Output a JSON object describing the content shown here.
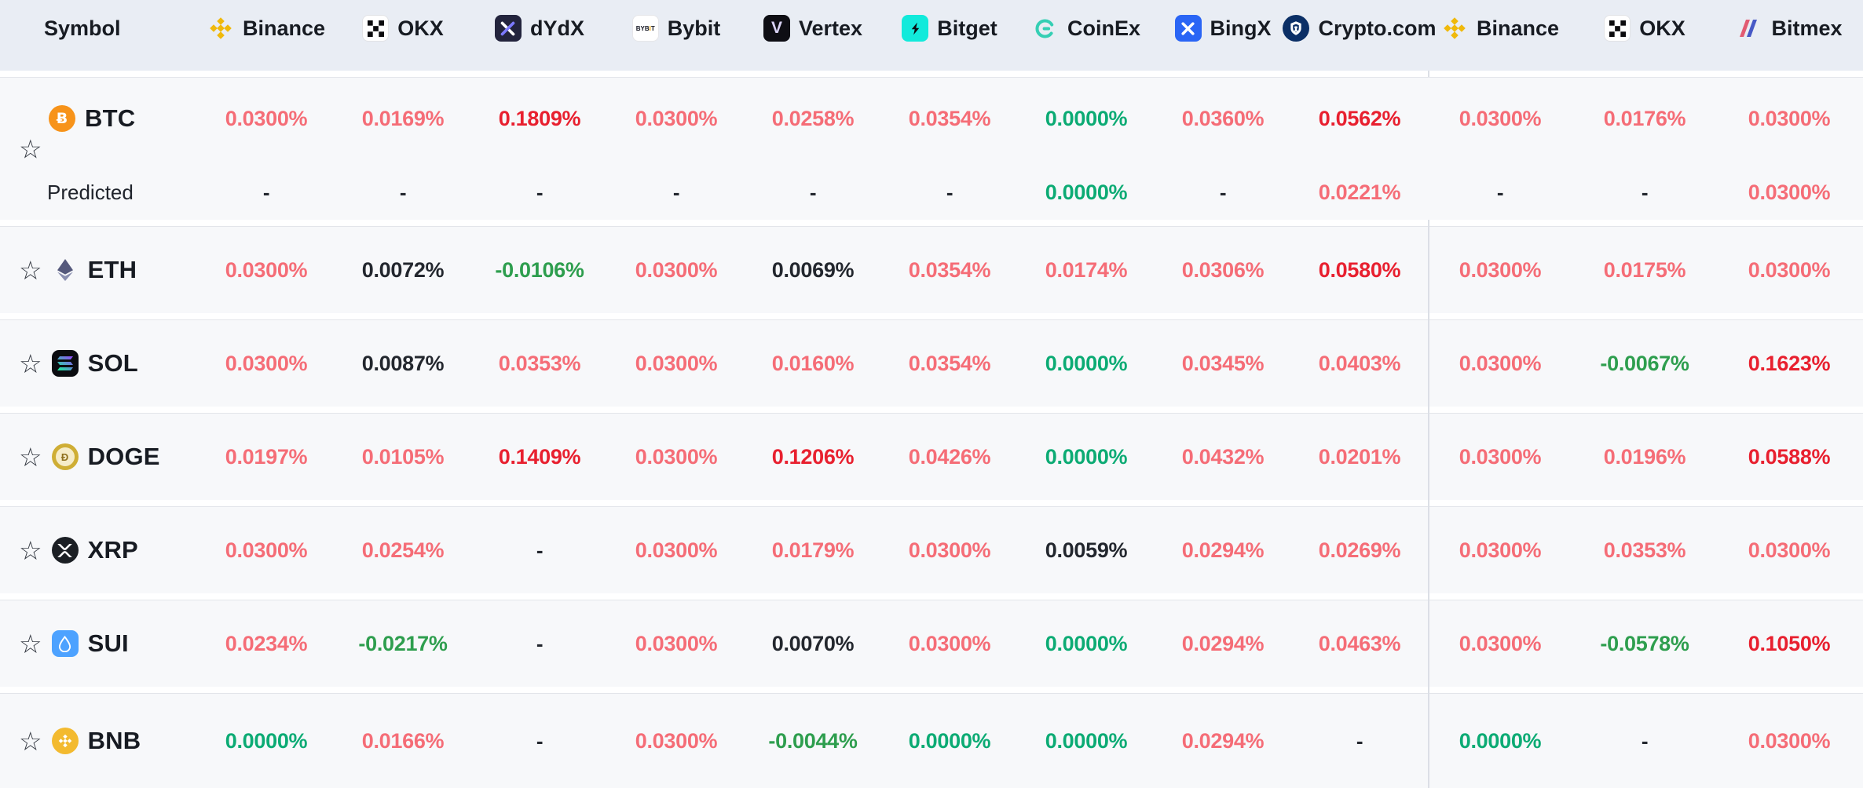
{
  "table": {
    "symbol_header": "Symbol",
    "exchanges": [
      {
        "name": "Binance",
        "icon": "binance-icon"
      },
      {
        "name": "OKX",
        "icon": "okx-icon"
      },
      {
        "name": "dYdX",
        "icon": "dydx-icon"
      },
      {
        "name": "Bybit",
        "icon": "bybit-icon"
      },
      {
        "name": "Vertex",
        "icon": "vertex-icon"
      },
      {
        "name": "Bitget",
        "icon": "bitget-icon"
      },
      {
        "name": "CoinEx",
        "icon": "coinex-icon"
      },
      {
        "name": "BingX",
        "icon": "bingx-icon"
      },
      {
        "name": "Crypto.com",
        "icon": "cryptocom-icon"
      },
      {
        "name": "Binance",
        "icon": "binance-icon"
      },
      {
        "name": "OKX",
        "icon": "okx-icon"
      },
      {
        "name": "Bitmex",
        "icon": "bitmex-icon"
      }
    ],
    "btc_block": {
      "symbol": "BTC",
      "icon": "btc-icon",
      "values": [
        {
          "v": "0.0300%",
          "tone": "red"
        },
        {
          "v": "0.0169%",
          "tone": "red"
        },
        {
          "v": "0.1809%",
          "tone": "red2"
        },
        {
          "v": "0.0300%",
          "tone": "red"
        },
        {
          "v": "0.0258%",
          "tone": "red"
        },
        {
          "v": "0.0354%",
          "tone": "red"
        },
        {
          "v": "0.0000%",
          "tone": "green"
        },
        {
          "v": "0.0360%",
          "tone": "red"
        },
        {
          "v": "0.0562%",
          "tone": "red2"
        },
        {
          "v": "0.0300%",
          "tone": "red"
        },
        {
          "v": "0.0176%",
          "tone": "red"
        },
        {
          "v": "0.0300%",
          "tone": "red"
        }
      ],
      "predicted": {
        "label": "Predicted",
        "values": [
          {
            "v": "-",
            "tone": "dash"
          },
          {
            "v": "-",
            "tone": "dash"
          },
          {
            "v": "-",
            "tone": "dash"
          },
          {
            "v": "-",
            "tone": "dash"
          },
          {
            "v": "-",
            "tone": "dash"
          },
          {
            "v": "-",
            "tone": "dash"
          },
          {
            "v": "0.0000%",
            "tone": "green"
          },
          {
            "v": "-",
            "tone": "dash"
          },
          {
            "v": "0.0221%",
            "tone": "red"
          },
          {
            "v": "-",
            "tone": "dash"
          },
          {
            "v": "-",
            "tone": "dash"
          },
          {
            "v": "0.0300%",
            "tone": "red"
          }
        ]
      }
    },
    "rows": [
      {
        "symbol": "ETH",
        "icon": "eth-icon",
        "values": [
          {
            "v": "0.0300%",
            "tone": "red"
          },
          {
            "v": "0.0072%",
            "tone": "dark"
          },
          {
            "v": "-0.0106%",
            "tone": "green2"
          },
          {
            "v": "0.0300%",
            "tone": "red"
          },
          {
            "v": "0.0069%",
            "tone": "dark"
          },
          {
            "v": "0.0354%",
            "tone": "red"
          },
          {
            "v": "0.0174%",
            "tone": "red"
          },
          {
            "v": "0.0306%",
            "tone": "red"
          },
          {
            "v": "0.0580%",
            "tone": "red2"
          },
          {
            "v": "0.0300%",
            "tone": "red"
          },
          {
            "v": "0.0175%",
            "tone": "red"
          },
          {
            "v": "0.0300%",
            "tone": "red"
          }
        ]
      },
      {
        "symbol": "SOL",
        "icon": "sol-icon",
        "values": [
          {
            "v": "0.0300%",
            "tone": "red"
          },
          {
            "v": "0.0087%",
            "tone": "dark"
          },
          {
            "v": "0.0353%",
            "tone": "red"
          },
          {
            "v": "0.0300%",
            "tone": "red"
          },
          {
            "v": "0.0160%",
            "tone": "red"
          },
          {
            "v": "0.0354%",
            "tone": "red"
          },
          {
            "v": "0.0000%",
            "tone": "green"
          },
          {
            "v": "0.0345%",
            "tone": "red"
          },
          {
            "v": "0.0403%",
            "tone": "red"
          },
          {
            "v": "0.0300%",
            "tone": "red"
          },
          {
            "v": "-0.0067%",
            "tone": "green2"
          },
          {
            "v": "0.1623%",
            "tone": "red2"
          }
        ]
      },
      {
        "symbol": "DOGE",
        "icon": "doge-icon",
        "values": [
          {
            "v": "0.0197%",
            "tone": "red"
          },
          {
            "v": "0.0105%",
            "tone": "red"
          },
          {
            "v": "0.1409%",
            "tone": "red2"
          },
          {
            "v": "0.0300%",
            "tone": "red"
          },
          {
            "v": "0.1206%",
            "tone": "red2"
          },
          {
            "v": "0.0426%",
            "tone": "red"
          },
          {
            "v": "0.0000%",
            "tone": "green"
          },
          {
            "v": "0.0432%",
            "tone": "red"
          },
          {
            "v": "0.0201%",
            "tone": "red"
          },
          {
            "v": "0.0300%",
            "tone": "red"
          },
          {
            "v": "0.0196%",
            "tone": "red"
          },
          {
            "v": "0.0588%",
            "tone": "red2"
          }
        ]
      },
      {
        "symbol": "XRP",
        "icon": "xrp-icon",
        "values": [
          {
            "v": "0.0300%",
            "tone": "red"
          },
          {
            "v": "0.0254%",
            "tone": "red"
          },
          {
            "v": "-",
            "tone": "dash"
          },
          {
            "v": "0.0300%",
            "tone": "red"
          },
          {
            "v": "0.0179%",
            "tone": "red"
          },
          {
            "v": "0.0300%",
            "tone": "red"
          },
          {
            "v": "0.0059%",
            "tone": "dark"
          },
          {
            "v": "0.0294%",
            "tone": "red"
          },
          {
            "v": "0.0269%",
            "tone": "red"
          },
          {
            "v": "0.0300%",
            "tone": "red"
          },
          {
            "v": "0.0353%",
            "tone": "red"
          },
          {
            "v": "0.0300%",
            "tone": "red"
          }
        ]
      },
      {
        "symbol": "SUI",
        "icon": "sui-icon",
        "values": [
          {
            "v": "0.0234%",
            "tone": "red"
          },
          {
            "v": "-0.0217%",
            "tone": "green2"
          },
          {
            "v": "-",
            "tone": "dash"
          },
          {
            "v": "0.0300%",
            "tone": "red"
          },
          {
            "v": "0.0070%",
            "tone": "dark"
          },
          {
            "v": "0.0300%",
            "tone": "red"
          },
          {
            "v": "0.0000%",
            "tone": "green"
          },
          {
            "v": "0.0294%",
            "tone": "red"
          },
          {
            "v": "0.0463%",
            "tone": "red"
          },
          {
            "v": "0.0300%",
            "tone": "red"
          },
          {
            "v": "-0.0578%",
            "tone": "green2"
          },
          {
            "v": "0.1050%",
            "tone": "red2"
          }
        ]
      },
      {
        "symbol": "BNB",
        "icon": "bnb-icon",
        "values": [
          {
            "v": "0.0000%",
            "tone": "green"
          },
          {
            "v": "0.0166%",
            "tone": "red"
          },
          {
            "v": "-",
            "tone": "dash"
          },
          {
            "v": "0.0300%",
            "tone": "red"
          },
          {
            "v": "-0.0044%",
            "tone": "green2"
          },
          {
            "v": "0.0000%",
            "tone": "green"
          },
          {
            "v": "0.0000%",
            "tone": "green"
          },
          {
            "v": "0.0294%",
            "tone": "red"
          },
          {
            "v": "-",
            "tone": "dash"
          },
          {
            "v": "0.0000%",
            "tone": "green"
          },
          {
            "v": "-",
            "tone": "dash"
          },
          {
            "v": "0.0300%",
            "tone": "red"
          }
        ]
      }
    ]
  },
  "colors": {
    "header_bg": "#e9edf4",
    "row_bg": "#f7f8fa",
    "divider": "#dcdfe6",
    "red": "#f56d77",
    "red_strong": "#e8202f",
    "green_zero": "#0cab74",
    "green_negative": "#2e9e4e",
    "neutral_dark": "#23272e"
  }
}
